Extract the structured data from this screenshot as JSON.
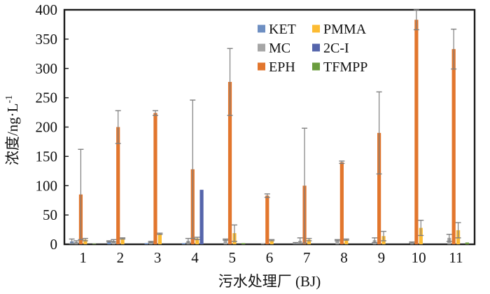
{
  "figure": {
    "background": "#ffffff",
    "frame_color": "#1a1a1a",
    "error_bar_color": "#7f7f7f",
    "tick_label_color": "#111111"
  },
  "chart_data": {
    "type": "bar",
    "title": "",
    "xlabel": "污水处理厂 (BJ)",
    "ylabel_base": "浓度/ng·L",
    "ylabel_superscript": "-1",
    "categories": [
      "1",
      "2",
      "3",
      "4",
      "5",
      "6",
      "7",
      "8",
      "9",
      "10",
      "11"
    ],
    "ylim": [
      0,
      400
    ],
    "ytick_step": 50,
    "grid": false,
    "legend_position": "inside-top-center",
    "legend_layout_rows": [
      [
        "KET",
        "PMMA"
      ],
      [
        "MC",
        "2C-I"
      ],
      [
        "EPH",
        "TFMPP"
      ]
    ],
    "series": [
      {
        "name": "KET",
        "color": "#6e8fc2",
        "values": [
          5,
          5,
          2,
          2,
          0,
          0,
          2,
          0,
          0,
          0,
          0
        ],
        "errors": [
          4,
          1,
          0,
          0,
          0,
          0,
          1,
          0,
          0,
          0,
          0
        ]
      },
      {
        "name": "MC",
        "color": "#a6a6a6",
        "values": [
          4,
          6,
          4,
          6,
          8,
          2,
          6,
          7,
          7,
          3,
          11
        ],
        "errors": [
          2,
          2,
          1,
          4,
          1,
          0,
          5,
          1,
          4,
          1,
          6
        ]
      },
      {
        "name": "EPH",
        "color": "#e2762d",
        "values": [
          85,
          200,
          224,
          128,
          277,
          83,
          100,
          140,
          190,
          383,
          333
        ],
        "errors": [
          77,
          28,
          4,
          118,
          57,
          3,
          98,
          2,
          70,
          17,
          34
        ]
      },
      {
        "name": "PMMA",
        "color": "#fcbb33",
        "values": [
          8,
          10,
          18,
          10,
          19,
          7,
          8,
          8,
          14,
          28,
          24
        ],
        "errors": [
          2,
          1,
          1,
          2,
          14,
          1,
          2,
          1,
          8,
          13,
          13
        ]
      },
      {
        "name": "2C-I",
        "color": "#5565ab",
        "values": [
          0,
          0,
          0,
          93,
          0,
          0,
          0,
          0,
          0,
          0,
          0
        ],
        "errors": [
          0,
          0,
          0,
          0,
          0,
          0,
          0,
          0,
          0,
          0,
          0
        ]
      },
      {
        "name": "TFMPP",
        "color": "#6a9c3d",
        "values": [
          1,
          0,
          0,
          0,
          2,
          0,
          0,
          0,
          0,
          0,
          3
        ],
        "errors": [
          0,
          0,
          0,
          0,
          0,
          0,
          0,
          0,
          0,
          0,
          0
        ]
      }
    ]
  }
}
